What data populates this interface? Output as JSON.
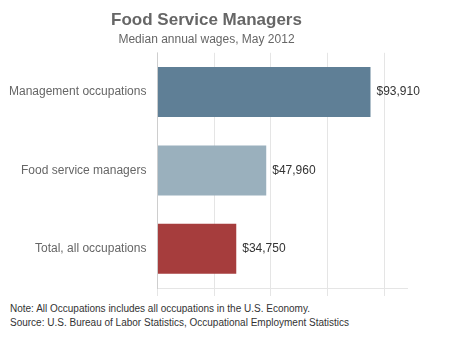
{
  "chart_data": {
    "type": "bar",
    "orientation": "horizontal",
    "title": "Food Service Managers",
    "subtitle": "Median annual wages, May 2012",
    "annotations": [
      "Note: All Occupations includes all occupations in the U.S. Economy.",
      "Source: U.S. Bureau of Labor Statistics, Occupational Employment Statistics"
    ],
    "categories": [
      "Management occupations",
      "Food service managers",
      "Total, all occupations"
    ],
    "values": [
      93910,
      47960,
      34750
    ],
    "value_labels": [
      "$93,910",
      "$47,960",
      "$34,750"
    ],
    "data_labels": true,
    "colors": [
      "#5f7f96",
      "#9ab0bd",
      "#a63d3d"
    ],
    "xlim": [
      0,
      110000
    ],
    "xticks": [
      0,
      25000,
      50000,
      75000,
      100000
    ],
    "grid": true,
    "tick_labels": "y"
  }
}
